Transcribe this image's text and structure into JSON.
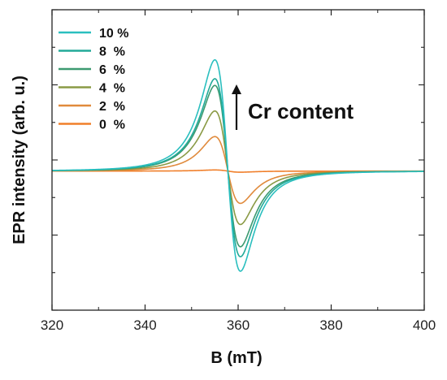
{
  "chart_data": {
    "type": "line",
    "xlabel": "B (mT)",
    "ylabel": "EPR intensity (arb. u.)",
    "xlim": [
      320,
      400
    ],
    "ylim": [
      -1.25,
      1.45
    ],
    "x_ticks": [
      "320",
      "340",
      "360",
      "380",
      "400"
    ],
    "x_tick_values": [
      320,
      340,
      360,
      380,
      400
    ],
    "y_ticks_shown": false,
    "grid": false,
    "legend_position": "top-left",
    "annotation": {
      "text": "Cr content",
      "arrow": "up"
    },
    "line_shape": {
      "center_mT": 357.8,
      "peak_position_mT": 355,
      "trough_position_mT": 360.5
    },
    "series": [
      {
        "name": "10 %",
        "color": "#2bbfbf",
        "peak": 1.0,
        "trough": -0.9
      },
      {
        "name": "8  %",
        "color": "#22aa99",
        "peak": 0.83,
        "trough": -0.77
      },
      {
        "name": "6  %",
        "color": "#3d9a70",
        "peak": 0.77,
        "trough": -0.68
      },
      {
        "name": "4  %",
        "color": "#8a9a45",
        "peak": 0.54,
        "trough": -0.48
      },
      {
        "name": "2  %",
        "color": "#e08a3c",
        "peak": 0.31,
        "trough": -0.29
      },
      {
        "name": "0  %",
        "color": "#f07f2a",
        "peak": 0.01,
        "trough": -0.01
      }
    ]
  }
}
